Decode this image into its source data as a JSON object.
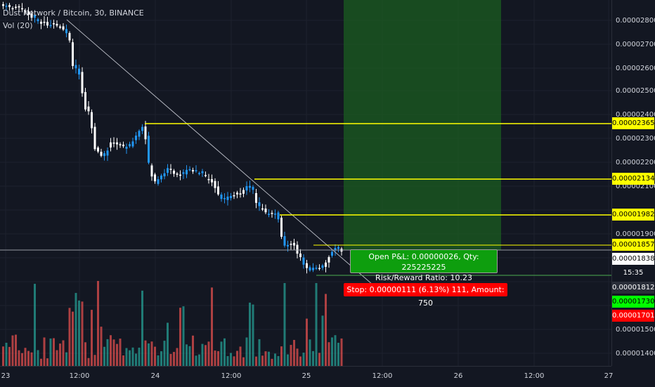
{
  "legend": {
    "symbol_line": "Dust Network / Bitcoin, 30, BINANCE",
    "volume_line": "Vol (20)"
  },
  "price_axis": {
    "ticks": [
      "0.00002800",
      "0.00002700",
      "0.00002600",
      "0.00002500",
      "0.00002400",
      "0.00002300",
      "0.00002200",
      "0.00002100",
      "0.00001900",
      "0.00001500",
      "0.00001400"
    ],
    "labels": [
      {
        "text": "0.00002365",
        "bg": "#ffff00",
        "fg": "#000000"
      },
      {
        "text": "0.00002134",
        "bg": "#ffff00",
        "fg": "#000000"
      },
      {
        "text": "0.00001982",
        "bg": "#ffff00",
        "fg": "#000000"
      },
      {
        "text": "0.00001857",
        "bg": "#ffff00",
        "fg": "#000000"
      },
      {
        "text": "0.00001838",
        "bg": "#ffffff",
        "fg": "#000000"
      },
      {
        "text": "15:35",
        "bg": "#131722",
        "fg": "#ffffff"
      },
      {
        "text": "0.00001812",
        "bg": "#2a2e39",
        "fg": "#ffffff"
      },
      {
        "text": "0.00001730",
        "bg": "#00ff00",
        "fg": "#000000"
      },
      {
        "text": "0.00001701",
        "bg": "#ff0000",
        "fg": "#ffffff"
      }
    ]
  },
  "time_axis": {
    "labels": [
      "23",
      "12:00",
      "24",
      "12:00",
      "25",
      "12:00",
      "26",
      "12:00",
      "27"
    ]
  },
  "position_tool": {
    "pnl_line1": "Open P&L: 0.00000026, Qty: 225225225",
    "pnl_line2": "Risk/Reward Ratio: 10.23",
    "stop_text": "Stop: 0.00000111 (6.13%) 111, Amount: 750"
  },
  "colors": {
    "background": "#131722",
    "up_candle": "#2196f3",
    "down_candle": "#ffffff",
    "vol_up": "#26a69a",
    "vol_down": "#ef5350",
    "target_zone": "#1b5e20",
    "horizontal_line": "#ffff00"
  }
}
